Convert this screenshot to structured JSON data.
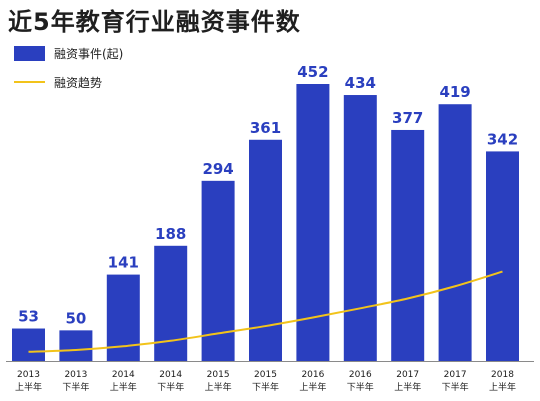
{
  "title": "近5年教育行业融资事件数",
  "colors": {
    "bar": "#2a3fbf",
    "trend": "#f2c31a",
    "label": "#2a3fbf",
    "tick": "#1a1a1a",
    "axis": "#8a8a8a"
  },
  "legend": [
    {
      "label": "融资事件(起)",
      "type": "bar"
    },
    {
      "label": "融资趋势",
      "type": "line"
    }
  ],
  "chart_data": {
    "type": "bar",
    "title": "近5年教育行业融资事件数",
    "categories": [
      [
        "2013",
        "上半年"
      ],
      [
        "2013",
        "下半年"
      ],
      [
        "2014",
        "上半年"
      ],
      [
        "2014",
        "下半年"
      ],
      [
        "2015",
        "上半年"
      ],
      [
        "2015",
        "下半年"
      ],
      [
        "2016",
        "上半年"
      ],
      [
        "2016",
        "下半年"
      ],
      [
        "2017",
        "上半年"
      ],
      [
        "2017",
        "下半年"
      ],
      [
        "2018",
        "上半年"
      ]
    ],
    "series": [
      {
        "name": "融资事件(起)",
        "type": "bar",
        "values": [
          53,
          50,
          141,
          188,
          294,
          361,
          452,
          434,
          377,
          419,
          342
        ]
      },
      {
        "name": "融资趋势",
        "type": "line",
        "values": [
          15,
          18,
          24,
          33,
          45,
          57,
          71,
          86,
          102,
          122,
          146
        ]
      }
    ],
    "ylim": [
      0,
      470
    ],
    "grid": false,
    "legend_position": "top-left"
  }
}
